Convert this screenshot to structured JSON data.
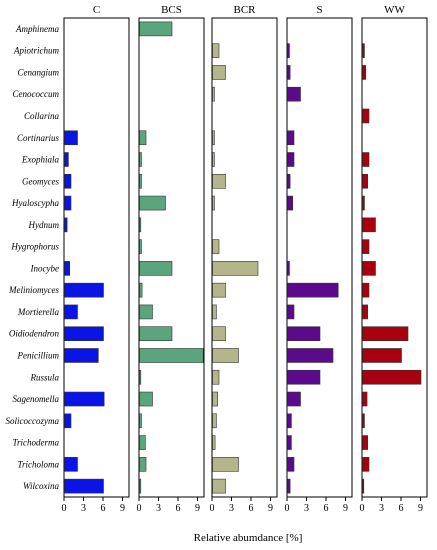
{
  "chart_data": {
    "type": "bar",
    "orientation": "horizontal",
    "xlabel": "Relative abumdance [%]",
    "xlim": [
      0,
      10
    ],
    "xticks": [
      0,
      3,
      6,
      9
    ],
    "categories": [
      "Amphinema",
      "Apiotrichum",
      "Cenangium",
      "Cenococcum",
      "Collarina",
      "Cortinarius",
      "Exophiala",
      "Geomyces",
      "Hyaloscypha",
      "Hydnum",
      "Hygrophorus",
      "Inocybe",
      "Meliniomyces",
      "Mortierella",
      "Oidiodendron",
      "Penicillium",
      "Russula",
      "Sagenomella",
      "Solicoccozyma",
      "Trichoderma",
      "Tricholoma",
      "Wilcoxina"
    ],
    "panels": [
      {
        "name": "C",
        "color": "#0a14e6",
        "values": [
          0,
          0,
          0,
          0,
          0,
          2,
          0.6,
          1,
          1,
          0.4,
          0,
          0.8,
          6,
          2,
          6,
          5.2,
          0,
          6.1,
          1,
          0,
          2,
          6
        ]
      },
      {
        "name": "BCS",
        "color": "#5aa57e",
        "values": [
          5,
          0,
          0,
          0,
          0,
          1,
          0.3,
          0.3,
          4,
          0.2,
          0.3,
          5,
          0.4,
          2,
          5,
          9.8,
          0.2,
          2,
          0.3,
          0.9,
          1,
          0.2
        ]
      },
      {
        "name": "BCR",
        "color": "#b5b58c",
        "values": [
          0,
          1,
          2,
          0.3,
          0,
          0.3,
          0.3,
          2,
          0.3,
          0,
          1,
          7,
          2,
          0.6,
          2,
          4,
          1,
          0.8,
          0.6,
          0.4,
          4,
          2
        ]
      },
      {
        "name": "S",
        "color": "#5c0a8c",
        "values": [
          0,
          0.3,
          0.4,
          2,
          0,
          1,
          1,
          0.4,
          0.8,
          0,
          0,
          0.3,
          7.8,
          1,
          5,
          7,
          5,
          2,
          0.6,
          0.6,
          1,
          0.4
        ]
      },
      {
        "name": "WW",
        "color": "#a8000e",
        "values": [
          0,
          0.3,
          0.5,
          0,
          1,
          0,
          1,
          0.8,
          0.3,
          2,
          1,
          2,
          1,
          0.8,
          7,
          6,
          9,
          0.7,
          0.3,
          0.8,
          1,
          0.2
        ]
      }
    ]
  }
}
